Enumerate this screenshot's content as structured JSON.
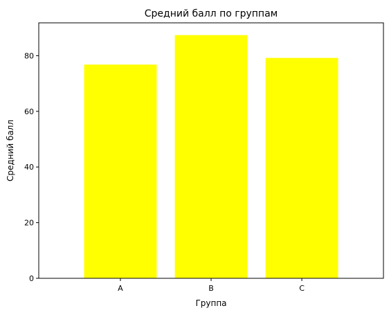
{
  "chart_data": {
    "type": "bar",
    "title": "Средний балл по группам",
    "xlabel": "Группа",
    "ylabel": "Средний балл",
    "categories": [
      "A",
      "B",
      "C"
    ],
    "values": [
      76.8,
      87.4,
      79.2
    ],
    "ylim": [
      0,
      91.8
    ],
    "yticks": [
      0,
      20,
      40,
      60,
      80
    ],
    "bar_color": "#ffff00",
    "grid": false
  }
}
